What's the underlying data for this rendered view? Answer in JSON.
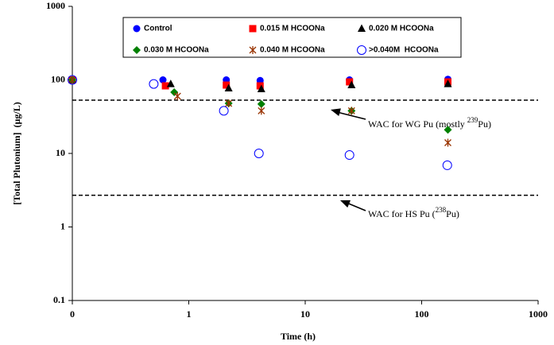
{
  "chart_data": {
    "type": "scatter",
    "x_label": "Time (h)",
    "y_label": "[Total Plutonium]  (µg/L)",
    "x_log": true,
    "y_log": true,
    "xlim": [
      0.1,
      1000
    ],
    "ylim": [
      0.1,
      1000
    ],
    "xticks": [
      {
        "value": 0.1,
        "label": "0"
      },
      1,
      10,
      100,
      1000
    ],
    "yticks": [
      0.1,
      1,
      10,
      100,
      1000
    ],
    "series": [
      {
        "name": "Control",
        "color": "#0000ff",
        "marker": "circle",
        "x": [
          0.1,
          0.6,
          2.1,
          4.1,
          24,
          168
        ],
        "values": [
          100,
          100,
          100,
          98,
          100,
          102
        ]
      },
      {
        "name": "0.015 M HCOONa",
        "color": "#ff0000",
        "marker": "square",
        "x": [
          0.1,
          0.63,
          2.1,
          4.1,
          24,
          168
        ],
        "values": [
          100,
          83,
          85,
          83,
          94,
          94
        ]
      },
      {
        "name": "0.020 M HCOONa",
        "color": "#000000",
        "marker": "triangle",
        "x": [
          0.1,
          0.7,
          2.2,
          4.2,
          25,
          168
        ],
        "values": [
          100,
          88,
          77,
          75,
          85,
          88
        ]
      },
      {
        "name": "0.030 M HCOONa",
        "color": "#008000",
        "marker": "diamond",
        "x": [
          0.1,
          0.75,
          2.2,
          4.2,
          25,
          168
        ],
        "values": [
          100,
          68,
          48,
          47,
          38,
          21
        ]
      },
      {
        "name": "0.040 M HCOONa",
        "color": "#993300",
        "marker": "asterisk",
        "x": [
          0.1,
          0.8,
          2.2,
          4.2,
          25,
          168
        ],
        "values": [
          100,
          60,
          48,
          38,
          38,
          14
        ]
      },
      {
        "name": ">0.040M  HCOONa",
        "color": "#0000ff",
        "marker": "open-circle",
        "x": [
          0.1,
          0.5,
          2.0,
          4.0,
          24,
          166
        ],
        "values": [
          100,
          88,
          38,
          10,
          9.5,
          6.9
        ]
      }
    ],
    "reference_lines": [
      {
        "value": 53,
        "annotation": [
          "WAC for WG Pu (mostly ",
          "239",
          "Pu)"
        ]
      },
      {
        "value": 2.7,
        "annotation": [
          "WAC for HS Pu (",
          "238",
          "Pu)"
        ]
      }
    ]
  }
}
